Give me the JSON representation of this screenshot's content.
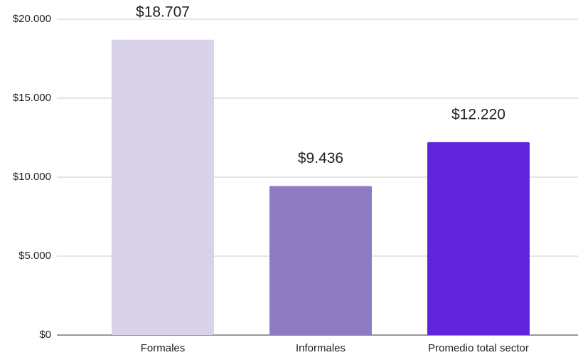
{
  "chart_data": {
    "type": "bar",
    "categories": [
      "Formales",
      "Informales",
      "Promedio total sector"
    ],
    "values": [
      18707,
      9436,
      12220
    ],
    "value_labels": [
      "$18.707",
      "$9.436",
      "$12.220"
    ],
    "colors": [
      "#d9d2e9",
      "#8e7cc3",
      "#6025da"
    ],
    "ylim": [
      0,
      20000
    ],
    "yticks": [
      {
        "value": 0,
        "label": "$0"
      },
      {
        "value": 5000,
        "label": "$5.000"
      },
      {
        "value": 10000,
        "label": "$10.000"
      },
      {
        "value": 15000,
        "label": "$15.000"
      },
      {
        "value": 20000,
        "label": "$20.000"
      }
    ],
    "grid": true
  }
}
